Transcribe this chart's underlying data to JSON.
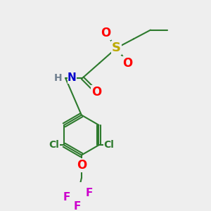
{
  "bg_color": "#eeeeee",
  "bond_color": "#2d7a2d",
  "bond_width": 1.5,
  "atom_colors": {
    "S": "#bbaa00",
    "O": "#ff0000",
    "N": "#0000cc",
    "H": "#708090",
    "Cl": "#2d7a2d",
    "F": "#cc00cc",
    "C": "#2d7a2d"
  }
}
